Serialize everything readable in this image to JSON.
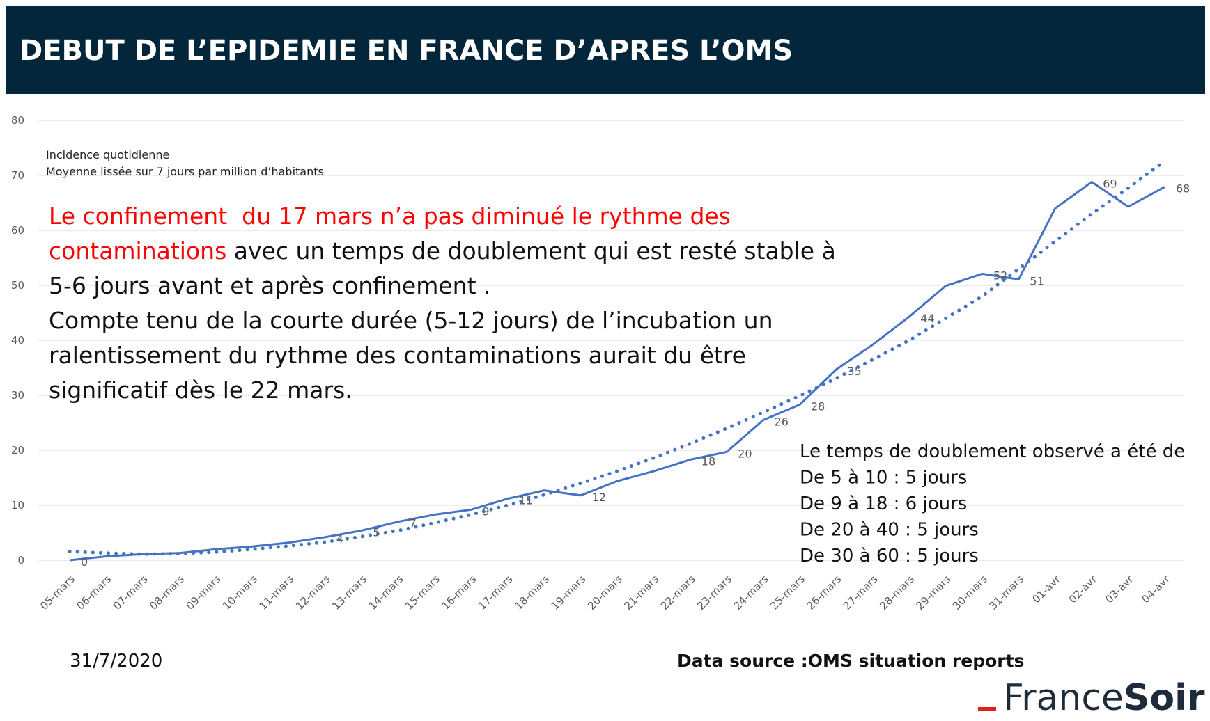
{
  "header": {
    "title": "DEBUT DE L’EPIDEMIE EN FRANCE D’APRES L’OMS"
  },
  "chart_data": {
    "type": "line",
    "subtitle": [
      "Incidence quotidienne",
      "Moyenne lissée sur 7 jours par million d’habitants"
    ],
    "categories": [
      "05-mars",
      "06-mars",
      "07-mars",
      "08-mars",
      "09-mars",
      "10-mars",
      "11-mars",
      "12-mars",
      "13-mars",
      "14-mars",
      "15-mars",
      "16-mars",
      "17-mars",
      "18-mars",
      "19-mars",
      "20-mars",
      "21-mars",
      "22-mars",
      "23-mars",
      "24-mars",
      "25-mars",
      "26-mars",
      "27-mars",
      "28-mars",
      "29-mars",
      "30-mars",
      "31-mars",
      "01-avr",
      "02-avr",
      "03-avr",
      "04-avr"
    ],
    "series": [
      {
        "color": "#4472c4",
        "style": "solid",
        "values": [
          0,
          0.7,
          1.1,
          1.3,
          2,
          2.5,
          3.2,
          4.2,
          5.4,
          7,
          8.3,
          9.2,
          11.2,
          12.7,
          11.8,
          14.4,
          16.2,
          18.3,
          19.7,
          25.5,
          28.3,
          34.7,
          39.2,
          44.3,
          49.9,
          52.1,
          51.1,
          64,
          68.8,
          64.3,
          67.9
        ],
        "value_labels": [
          "0",
          null,
          null,
          null,
          null,
          null,
          null,
          "4",
          "5",
          "7",
          null,
          "9",
          "11",
          null,
          "12",
          null,
          null,
          "18",
          "20",
          "26",
          "28",
          "35",
          null,
          "44",
          null,
          "52",
          "51",
          null,
          "69",
          null,
          "68"
        ]
      },
      {
        "color": "#4472c4",
        "style": "dotted",
        "values": [
          1.6,
          1.3,
          1.1,
          1.2,
          1.5,
          2,
          2.6,
          3.3,
          4.3,
          5.4,
          6.8,
          8.3,
          10,
          11.9,
          14,
          16.2,
          18.6,
          21.2,
          24,
          26.9,
          29.9,
          33.1,
          36.5,
          40,
          44,
          48,
          53,
          58,
          63,
          67.7,
          72.6
        ]
      }
    ],
    "ylim": [
      0,
      80
    ],
    "yticks": [
      0,
      10,
      20,
      30,
      40,
      50,
      60,
      70,
      80
    ],
    "grid": true,
    "annotation": [
      [
        {
          "text": "Le confinement  du 17 mars n’a pas diminué le rythme des",
          "color": "#ff0000"
        }
      ],
      [
        {
          "text": "contaminations",
          "color": "#ff0000"
        },
        {
          "text": " avec un temps de doublement qui est resté stable à",
          "color": "#111111"
        }
      ],
      [
        {
          "text": "5-6 jours avant et après confinement .",
          "color": "#111111"
        }
      ],
      [
        {
          "text": "Compte tenu de la courte durée (5-12 jours) de l’incubation un",
          "color": "#111111"
        }
      ],
      [
        {
          "text": "ralentissement du rythme des contaminations aurait du être",
          "color": "#111111"
        }
      ],
      [
        {
          "text": "significatif dès le 22 mars.",
          "color": "#111111"
        }
      ]
    ],
    "doubling_notes": [
      "Le temps de doublement observé a été de",
      "De 5 à 10 : 5 jours",
      "De 9 à 18 : 6 jours",
      "De 20 à 40 : 5 jours",
      "De 30 à 60 : 5 jours"
    ]
  },
  "footer": {
    "date": "31/7/2020",
    "source": "Data source :OMS situation reports",
    "logo": [
      "France",
      "Soir"
    ]
  }
}
